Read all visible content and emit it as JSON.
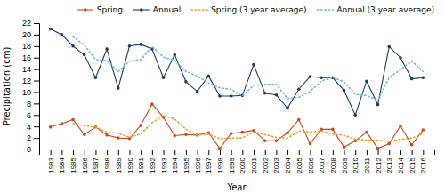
{
  "chart_data": {
    "type": "line",
    "x_label": "Year",
    "y_label": "Precipitation (cm)",
    "x": [
      1983,
      1984,
      1985,
      1986,
      1987,
      1988,
      1989,
      1990,
      1991,
      1992,
      1993,
      1994,
      1995,
      1996,
      1997,
      1998,
      1999,
      2000,
      2001,
      2002,
      2003,
      2004,
      2005,
      2006,
      2007,
      2008,
      2009,
      2010,
      2011,
      2012,
      2013,
      2014,
      2015,
      2016
    ],
    "xlim": [
      1982,
      2017
    ],
    "xticks": [
      1983,
      1984,
      1985,
      1986,
      1987,
      1988,
      1989,
      1990,
      1991,
      1992,
      1993,
      1994,
      1995,
      1996,
      1997,
      1998,
      1999,
      2000,
      2001,
      2002,
      2003,
      2004,
      2005,
      2006,
      2007,
      2008,
      2009,
      2010,
      2011,
      2012,
      2013,
      2014,
      2015,
      2016
    ],
    "ylim": [
      0,
      22
    ],
    "yticks": [
      0,
      2,
      4,
      6,
      8,
      10,
      12,
      14,
      16,
      18,
      20,
      22
    ],
    "grid": false,
    "legend": "top",
    "series": [
      {
        "name": "Spring",
        "color": "#cc4a1e",
        "marker": "circle",
        "line_style": "solid",
        "values": [
          3.9,
          4.5,
          5.2,
          2.6,
          3.9,
          2.5,
          2.0,
          1.9,
          4.2,
          7.9,
          5.6,
          2.4,
          2.6,
          2.5,
          2.9,
          0.2,
          2.8,
          3.0,
          3.3,
          1.5,
          1.5,
          2.9,
          5.2,
          1.0,
          3.5,
          3.5,
          0.4,
          1.5,
          3.0,
          0.2,
          1.0,
          4.1,
          0.8,
          3.4
        ]
      },
      {
        "name": "Annual",
        "color": "#1f3a6b",
        "marker": "circle",
        "line_style": "solid",
        "values": [
          21.0,
          20.0,
          18.0,
          16.5,
          12.5,
          17.5,
          10.7,
          18.0,
          18.3,
          17.5,
          12.5,
          16.5,
          11.8,
          10.1,
          12.8,
          9.3,
          9.3,
          9.4,
          14.8,
          9.8,
          9.5,
          7.2,
          10.5,
          12.7,
          12.5,
          12.5,
          10.3,
          6.0,
          11.9,
          7.8,
          17.9,
          16.0,
          12.3,
          12.5
        ]
      },
      {
        "name": "Spring (3 year average)",
        "color": "#f0a030",
        "marker": "none",
        "line_style": "dotted",
        "values": [
          null,
          null,
          4.533333333333333,
          4.1,
          3.9,
          3.0,
          2.8,
          2.1333333333333333,
          2.7,
          4.666666666666667,
          5.9,
          5.3,
          3.533333333333333,
          2.5,
          2.6666666666666665,
          1.8666666666666667,
          1.9666666666666668,
          2.0,
          3.033333333333333,
          2.6,
          2.1,
          1.9666666666666668,
          3.2,
          3.033333333333333,
          3.233333333333333,
          2.6666666666666665,
          2.466666666666667,
          1.8,
          1.6333333333333333,
          1.5666666666666667,
          1.4,
          1.7666666666666666,
          1.9666666666666668,
          2.7666666666666666
        ]
      },
      {
        "name": "Annual (3 year average)",
        "color": "#70b8d8",
        "marker": "none",
        "line_style": "dotted",
        "values": [
          null,
          null,
          19.666666666666668,
          18.166666666666668,
          15.666666666666666,
          15.5,
          13.566666666666666,
          15.4,
          15.666666666666666,
          17.933333333333334,
          16.1,
          15.5,
          13.6,
          12.8,
          11.566666666666668,
          10.733333333333334,
          10.466666666666667,
          9.333333333333334,
          11.166666666666666,
          11.333333333333334,
          11.366666666666667,
          8.833333333333334,
          9.066666666666666,
          10.133333333333333,
          11.9,
          12.566666666666666,
          11.766666666666666,
          9.6,
          9.4,
          8.566666666666666,
          12.533333333333333,
          13.9,
          15.4,
          13.6
        ]
      }
    ]
  }
}
